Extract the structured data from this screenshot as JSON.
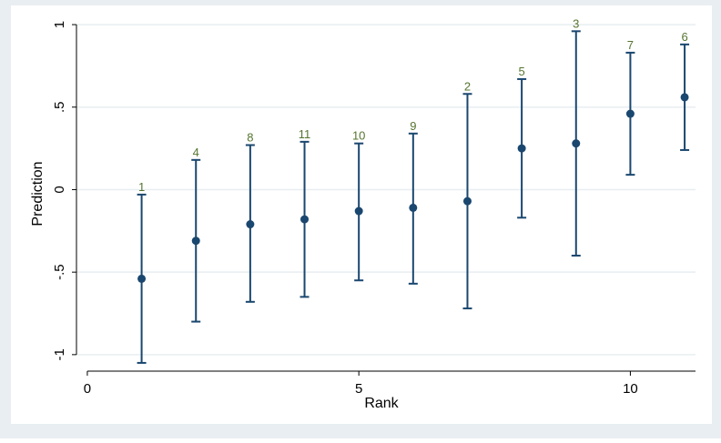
{
  "colors": {
    "outer_background": "#e8eef1",
    "plot_background": "#ffffff",
    "gridline": "#e8eef1",
    "marker": "#1a476f",
    "error_bar": "#1a476f",
    "point_label": "#55752f",
    "axis": "#000000"
  },
  "chart_data": {
    "type": "scatter",
    "subtype": "point-estimate-with-confidence-interval",
    "title": "",
    "xlabel": "Rank",
    "ylabel": "Prediction",
    "xlim": [
      -0.2,
      11.2
    ],
    "ylim": [
      -1.1,
      1.05
    ],
    "xticks": [
      0,
      5,
      10
    ],
    "xtick_labels": [
      "0",
      "5",
      "10"
    ],
    "yticks": [
      1,
      0.5,
      0,
      -0.5,
      -1
    ],
    "ytick_labels": [
      "1",
      ".5",
      "0",
      "-.5",
      "-1"
    ],
    "grid": "horizontal",
    "legend": "none",
    "points": [
      {
        "x": 1,
        "y": -0.54,
        "lower": -1.05,
        "upper": -0.03,
        "label": "1"
      },
      {
        "x": 2,
        "y": -0.31,
        "lower": -0.8,
        "upper": 0.18,
        "label": "4"
      },
      {
        "x": 3,
        "y": -0.21,
        "lower": -0.68,
        "upper": 0.27,
        "label": "8"
      },
      {
        "x": 4,
        "y": -0.18,
        "lower": -0.65,
        "upper": 0.29,
        "label": "11"
      },
      {
        "x": 5,
        "y": -0.13,
        "lower": -0.55,
        "upper": 0.28,
        "label": "10"
      },
      {
        "x": 6,
        "y": -0.11,
        "lower": -0.57,
        "upper": 0.34,
        "label": "9"
      },
      {
        "x": 7,
        "y": -0.07,
        "lower": -0.72,
        "upper": 0.58,
        "label": "2"
      },
      {
        "x": 8,
        "y": 0.25,
        "lower": -0.17,
        "upper": 0.67,
        "label": "5"
      },
      {
        "x": 9,
        "y": 0.28,
        "lower": -0.4,
        "upper": 0.96,
        "label": "3"
      },
      {
        "x": 10,
        "y": 0.46,
        "lower": 0.09,
        "upper": 0.83,
        "label": "7"
      },
      {
        "x": 11,
        "y": 0.56,
        "lower": 0.24,
        "upper": 0.88,
        "label": "6"
      }
    ]
  }
}
